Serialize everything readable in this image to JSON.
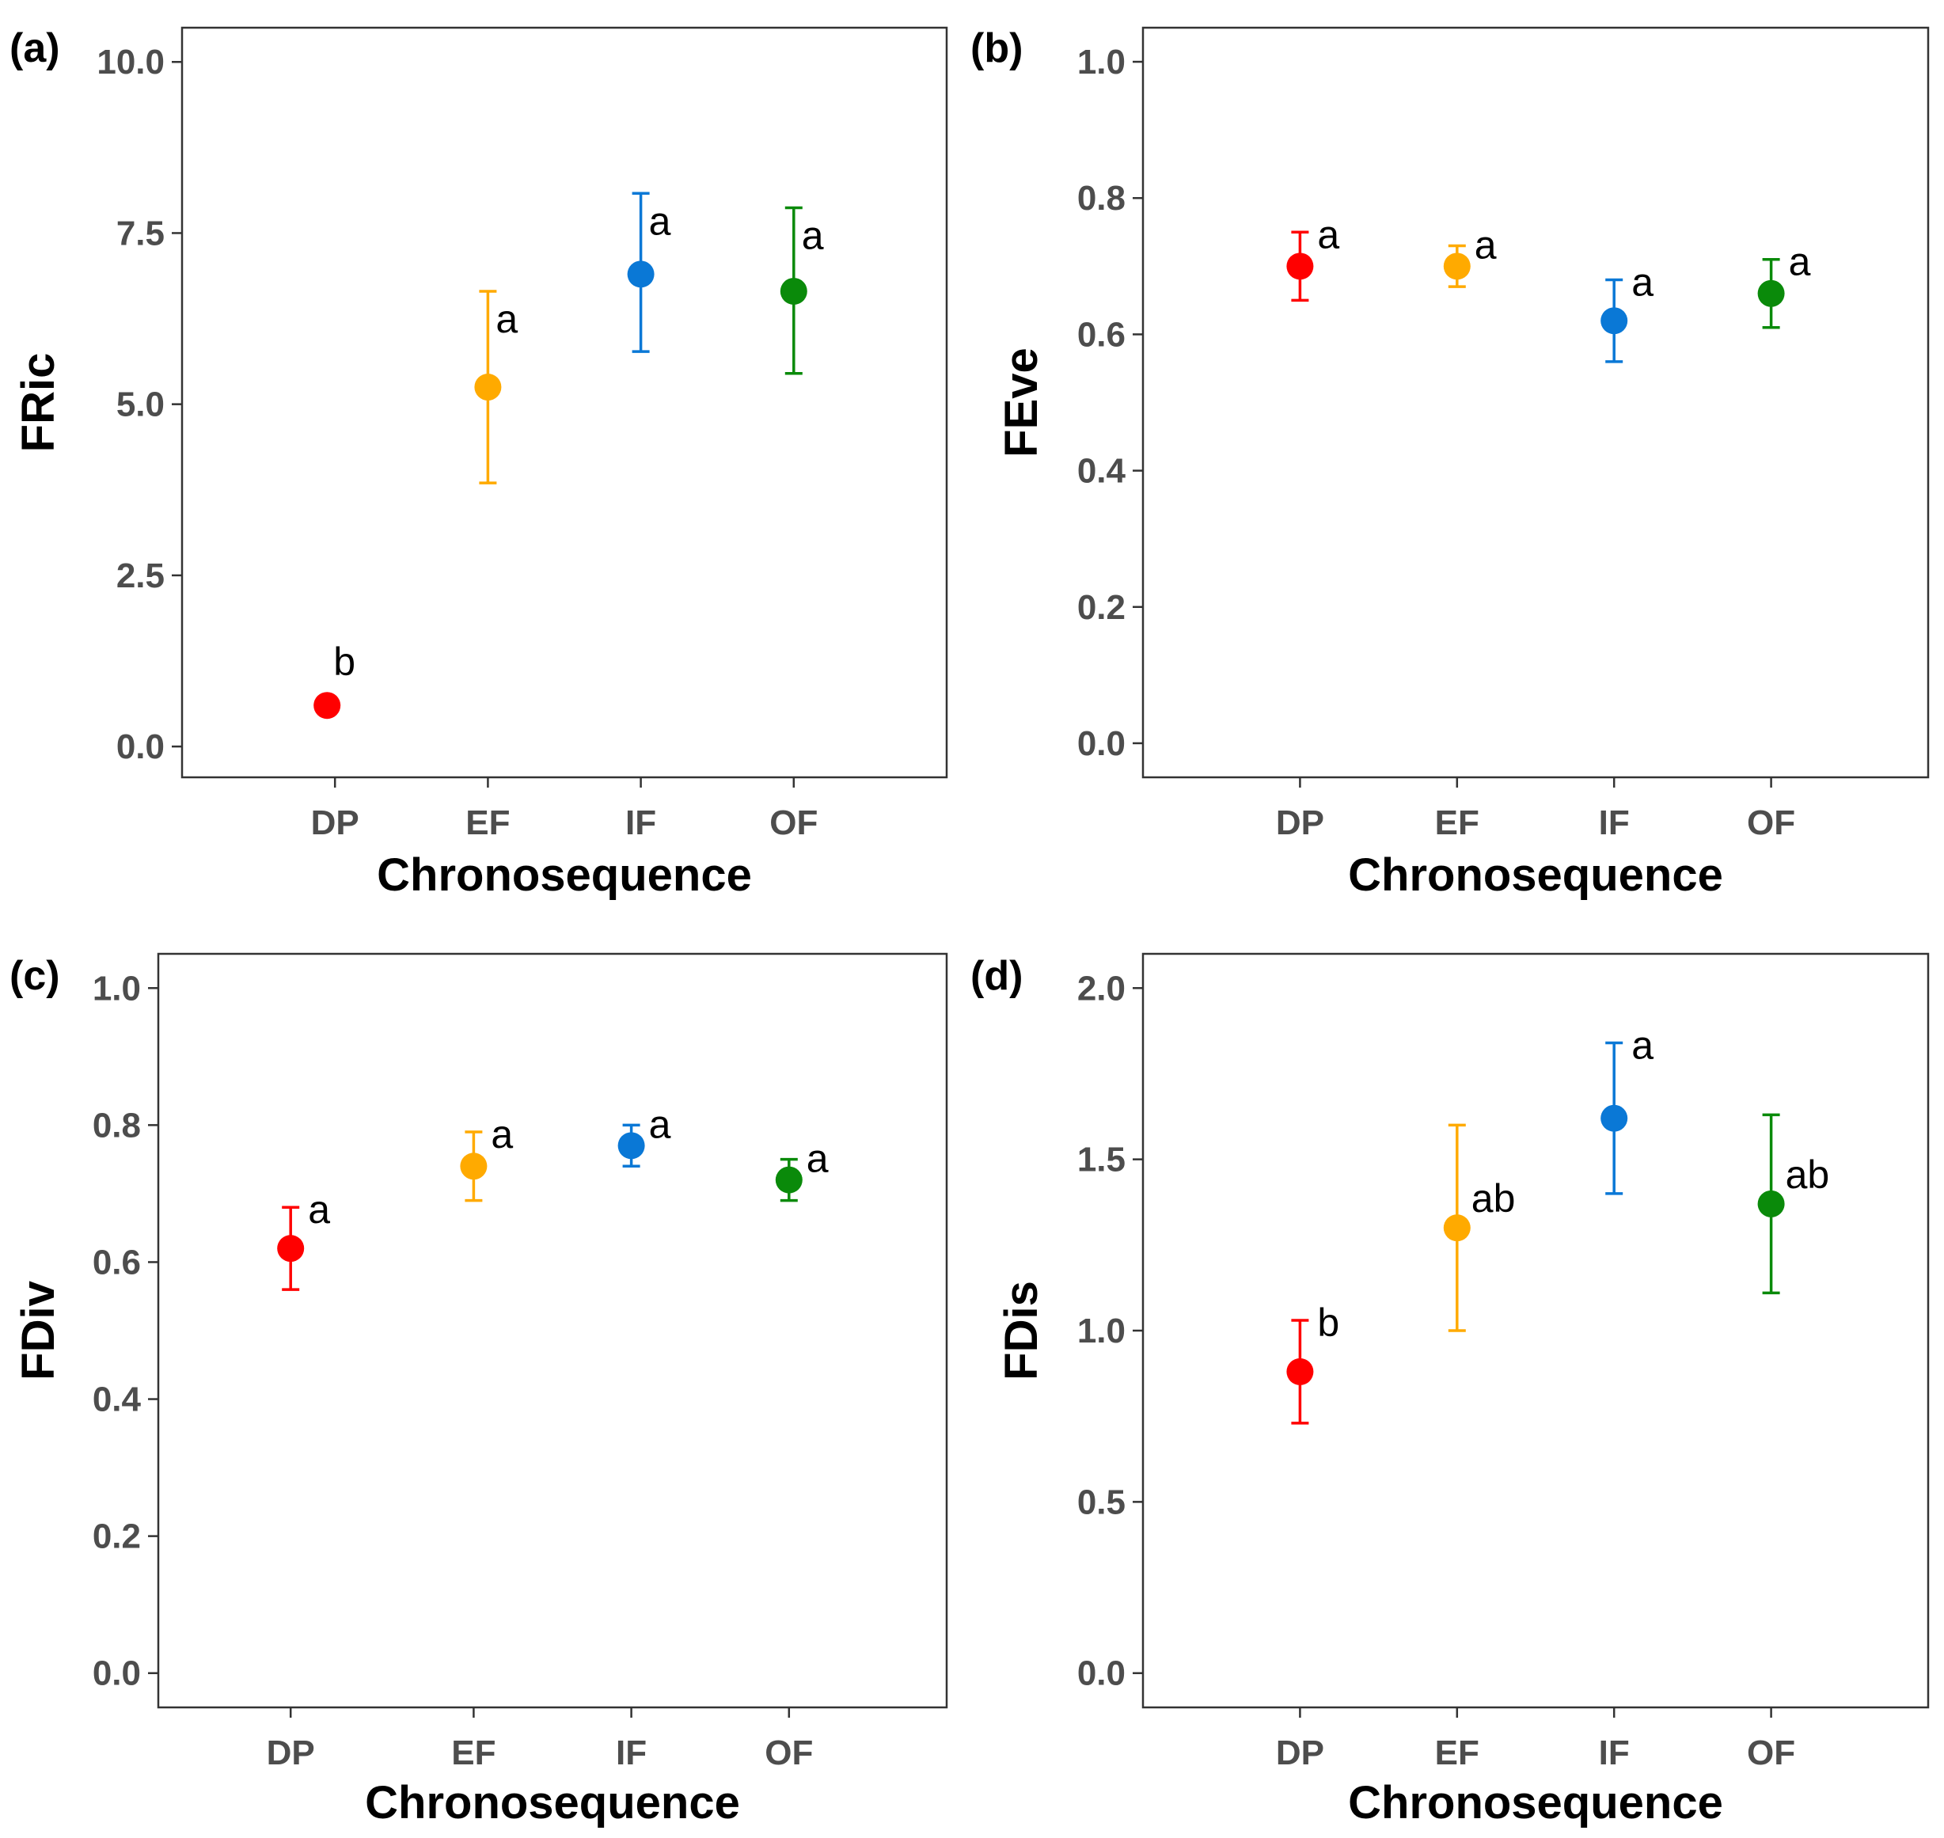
{
  "colors": {
    "DP": "#ff0000",
    "EF": "#ffaa00",
    "IF": "#0a78d6",
    "OF": "#0a8a0a"
  },
  "chart_data": [
    {
      "panel": "(a)",
      "type": "scatter",
      "xlabel": "Chronosequence",
      "ylabel": "FRic",
      "categories": [
        "DP",
        "EF",
        "IF",
        "OF"
      ],
      "ylim": [
        -0.45,
        10.5
      ],
      "yticks": [
        0.0,
        2.5,
        5.0,
        7.5,
        10.0
      ],
      "ytick_labels": [
        "0.0",
        "2.5",
        "5.0",
        "7.5",
        "10.0"
      ],
      "values": [
        0.6,
        5.25,
        6.9,
        6.65
      ],
      "lower": [
        0.6,
        3.85,
        5.77,
        5.45
      ],
      "upper": [
        0.6,
        6.65,
        8.08,
        7.87
      ],
      "letters": [
        "b",
        "a",
        "a",
        "a"
      ]
    },
    {
      "panel": "(b)",
      "type": "scatter",
      "xlabel": "Chronosequence",
      "ylabel": "FEve",
      "categories": [
        "DP",
        "EF",
        "IF",
        "OF"
      ],
      "ylim": [
        -0.05,
        1.05
      ],
      "yticks": [
        0.0,
        0.2,
        0.4,
        0.6,
        0.8,
        1.0
      ],
      "ytick_labels": [
        "0.0",
        "0.2",
        "0.4",
        "0.6",
        "0.8",
        "1.0"
      ],
      "values": [
        0.7,
        0.7,
        0.62,
        0.66
      ],
      "lower": [
        0.65,
        0.67,
        0.56,
        0.61
      ],
      "upper": [
        0.75,
        0.73,
        0.68,
        0.71
      ],
      "letters": [
        "a",
        "a",
        "a",
        "a"
      ]
    },
    {
      "panel": "(c)",
      "type": "scatter",
      "xlabel": "Chronosequence",
      "ylabel": "FDiv",
      "categories": [
        "DP",
        "EF",
        "IF",
        "OF"
      ],
      "ylim": [
        -0.05,
        1.05
      ],
      "yticks": [
        0.0,
        0.2,
        0.4,
        0.6,
        0.8,
        1.0
      ],
      "ytick_labels": [
        "0.0",
        "0.2",
        "0.4",
        "0.6",
        "0.8",
        "1.0"
      ],
      "values": [
        0.62,
        0.74,
        0.77,
        0.72
      ],
      "lower": [
        0.56,
        0.69,
        0.74,
        0.69
      ],
      "upper": [
        0.68,
        0.79,
        0.8,
        0.75
      ],
      "letters": [
        "a",
        "a",
        "a",
        "a"
      ]
    },
    {
      "panel": "(d)",
      "type": "scatter",
      "xlabel": "Chronosequence",
      "ylabel": "FDis",
      "categories": [
        "DP",
        "EF",
        "IF",
        "OF"
      ],
      "ylim": [
        -0.1,
        2.1
      ],
      "yticks": [
        0.0,
        0.5,
        1.0,
        1.5,
        2.0
      ],
      "ytick_labels": [
        "0.0",
        "0.5",
        "1.0",
        "1.5",
        "2.0"
      ],
      "values": [
        0.88,
        1.3,
        1.62,
        1.37
      ],
      "lower": [
        0.73,
        1.0,
        1.4,
        1.11
      ],
      "upper": [
        1.03,
        1.6,
        1.84,
        1.63
      ],
      "letters": [
        "b",
        "ab",
        "a",
        "ab"
      ]
    }
  ]
}
